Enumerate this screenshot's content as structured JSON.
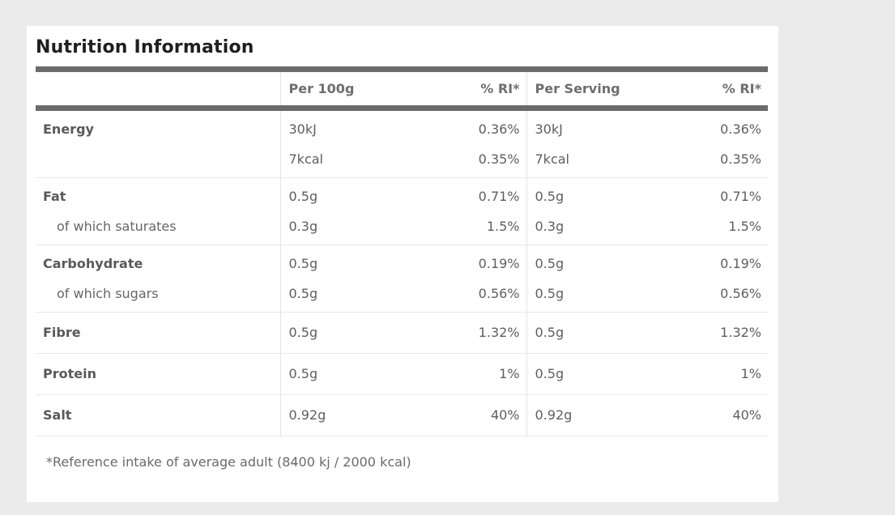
{
  "title": "Nutrition Information",
  "columns": [
    "",
    "Per 100g",
    "% RI*",
    "Per Serving",
    "% RI*"
  ],
  "rows": [
    {
      "label": "Energy",
      "per_100g": "30kJ",
      "ri_100g": "0.36%",
      "per_serving": "30kJ",
      "ri_serving": "0.36%"
    },
    {
      "label": "",
      "per_100g": "7kcal",
      "ri_100g": "0.35%",
      "per_serving": "7kcal",
      "ri_serving": "0.35%"
    },
    {
      "label": "Fat",
      "per_100g": "0.5g",
      "ri_100g": "0.71%",
      "per_serving": "0.5g",
      "ri_serving": "0.71%"
    },
    {
      "label": "of which saturates",
      "per_100g": "0.3g",
      "ri_100g": "1.5%",
      "per_serving": "0.3g",
      "ri_serving": "1.5%"
    },
    {
      "label": "Carbohydrate",
      "per_100g": "0.5g",
      "ri_100g": "0.19%",
      "per_serving": "0.5g",
      "ri_serving": "0.19%"
    },
    {
      "label": "of which sugars",
      "per_100g": "0.5g",
      "ri_100g": "0.56%",
      "per_serving": "0.5g",
      "ri_serving": "0.56%"
    },
    {
      "label": "Fibre",
      "per_100g": "0.5g",
      "ri_100g": "1.32%",
      "per_serving": "0.5g",
      "ri_serving": "1.32%"
    },
    {
      "label": "Protein",
      "per_100g": "0.5g",
      "ri_100g": "1%",
      "per_serving": "0.5g",
      "ri_serving": "1%"
    },
    {
      "label": "Salt",
      "per_100g": "0.92g",
      "ri_100g": "40%",
      "per_serving": "0.92g",
      "ri_serving": "40%"
    }
  ],
  "footnote": "*Reference intake of average adult (8400 kj / 2000 kcal)",
  "colors": {
    "page_background": "#ebebeb",
    "card_background": "#ffffff",
    "heavy_rule": "#6b6b6b",
    "title_text": "#1f1f1f",
    "header_text": "#6e6e6e",
    "label_text": "#595959",
    "value_text": "#5e5e5e",
    "light_rule": "#e8e8e8"
  }
}
